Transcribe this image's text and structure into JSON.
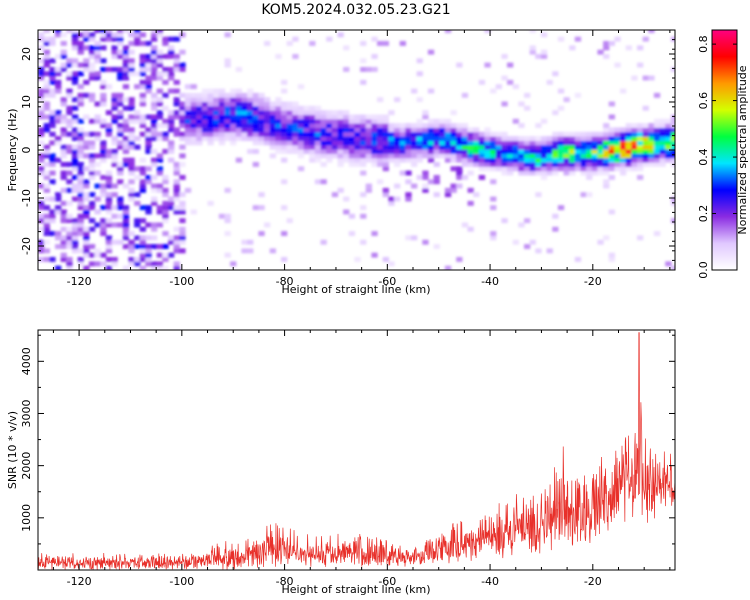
{
  "title": "KOM5.2024.032.05.23.G21",
  "chart_data": [
    {
      "type": "heatmap",
      "title": "KOM5.2024.032.05.23.G21",
      "xlabel": "Height of straight line (km)",
      "ylabel": "Frequency (Hz)",
      "xlim": [
        -128,
        -4
      ],
      "ylim": [
        -25,
        25
      ],
      "x_ticks": [
        -120,
        -100,
        -80,
        -60,
        -40,
        -20
      ],
      "y_ticks": [
        20,
        10,
        0,
        -10,
        -20
      ],
      "colorbar": {
        "label": "Normalized spectral amplitude",
        "range": [
          0,
          0.85
        ],
        "ticks": [
          "0.0",
          "0.2",
          "0.4",
          "0.6",
          "0.8"
        ],
        "colors": [
          "#ffffff",
          "#e0c8ff",
          "#8a2be2",
          "#0000ff",
          "#00e5ff",
          "#00ff40",
          "#d4ff00",
          "#ff9900",
          "#ff0000",
          "#ff0080"
        ]
      },
      "ridge": {
        "x": [
          -98,
          -90,
          -82,
          -74,
          -66,
          -58,
          -50,
          -44,
          -38,
          -32,
          -26,
          -20,
          -14,
          -8,
          -4
        ],
        "freq": [
          6,
          7,
          5,
          3,
          2,
          1,
          2,
          0,
          -1,
          -2,
          -1,
          -1,
          0,
          1,
          1
        ],
        "peak_amplitude": [
          0.3,
          0.35,
          0.3,
          0.3,
          0.3,
          0.35,
          0.4,
          0.45,
          0.4,
          0.45,
          0.5,
          0.55,
          0.8,
          0.6,
          0.65
        ]
      },
      "grid": false
    },
    {
      "type": "line",
      "xlabel": "Height of straight line (km)",
      "ylabel": "SNR (10 * v/v)",
      "xlim": [
        -128,
        -4
      ],
      "ylim": [
        0,
        4600
      ],
      "x_ticks": [
        -120,
        -100,
        -80,
        -60,
        -40,
        -20
      ],
      "y_ticks": [
        1000,
        2000,
        3000,
        4000
      ],
      "color": "#e8302a",
      "envelope": {
        "x": [
          -128,
          -110,
          -100,
          -90,
          -82,
          -75,
          -65,
          -55,
          -48,
          -42,
          -36,
          -30,
          -26,
          -22,
          -18,
          -14,
          -12,
          -11,
          -10,
          -8,
          -6,
          -4
        ],
        "upper": [
          350,
          350,
          380,
          600,
          1000,
          700,
          800,
          500,
          900,
          1200,
          1500,
          1800,
          2600,
          2100,
          2300,
          2700,
          3000,
          4550,
          2600,
          2600,
          2500,
          2700
        ],
        "lower": [
          0,
          0,
          0,
          0,
          50,
          50,
          50,
          50,
          100,
          150,
          200,
          250,
          350,
          400,
          600,
          900,
          800,
          1000,
          900,
          900,
          1100,
          1100
        ]
      },
      "peak": {
        "x": -11,
        "y": 4550
      },
      "grid": false
    }
  ]
}
